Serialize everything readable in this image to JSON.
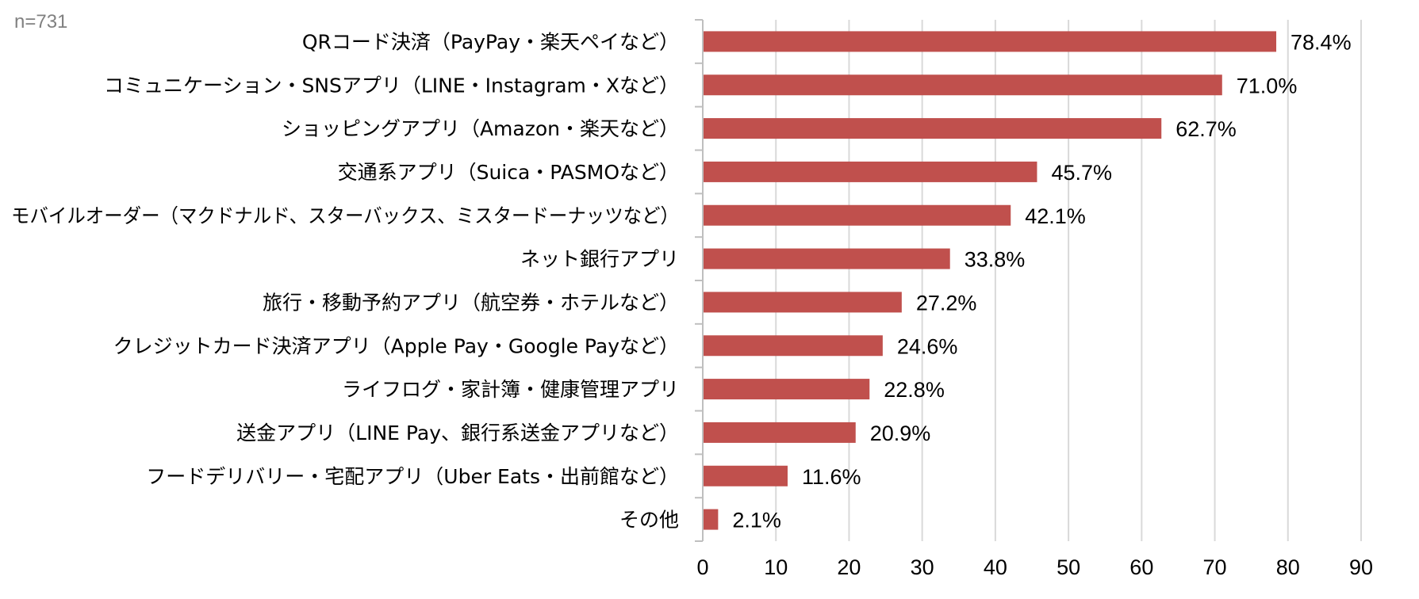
{
  "note": "n=731",
  "colors": {
    "bar": "#c0504d",
    "grid": "#d9d9d9",
    "axis": "#bfbfbf"
  },
  "chart_data": {
    "type": "bar",
    "orientation": "horizontal",
    "categories": [
      "QRコード決済（PayPay・楽天ペイなど）",
      "コミュニケーション・SNSアプリ（LINE・Instagram・Xなど）",
      "ショッピングアプリ（Amazon・楽天など）",
      "交通系アプリ（Suica・PASMOなど）",
      "モバイルオーダー（マクドナルド、スターバックス、ミスタードーナッツなど）",
      "ネット銀行アプリ",
      "旅行・移動予約アプリ（航空券・ホテルなど）",
      "クレジットカード決済アプリ（Apple Pay・Google Payなど）",
      "ライフログ・家計簿・健康管理アプリ",
      "送金アプリ（LINE Pay、銀行系送金アプリなど）",
      "フードデリバリー・宅配アプリ（Uber Eats・出前館など）",
      "その他"
    ],
    "values": [
      78.4,
      71.0,
      62.7,
      45.7,
      42.1,
      33.8,
      27.2,
      24.6,
      22.8,
      20.9,
      11.6,
      2.1
    ],
    "value_labels": [
      "78.4%",
      "71.0%",
      "62.7%",
      "45.7%",
      "42.1%",
      "33.8%",
      "27.2%",
      "24.6%",
      "22.8%",
      "20.9%",
      "11.6%",
      "2.1%"
    ],
    "xlim": [
      0,
      90
    ],
    "xticks": [
      0,
      10,
      20,
      30,
      40,
      50,
      60,
      70,
      80,
      90
    ],
    "grid": true,
    "legend": "none",
    "title": "",
    "xlabel": "",
    "ylabel": ""
  }
}
